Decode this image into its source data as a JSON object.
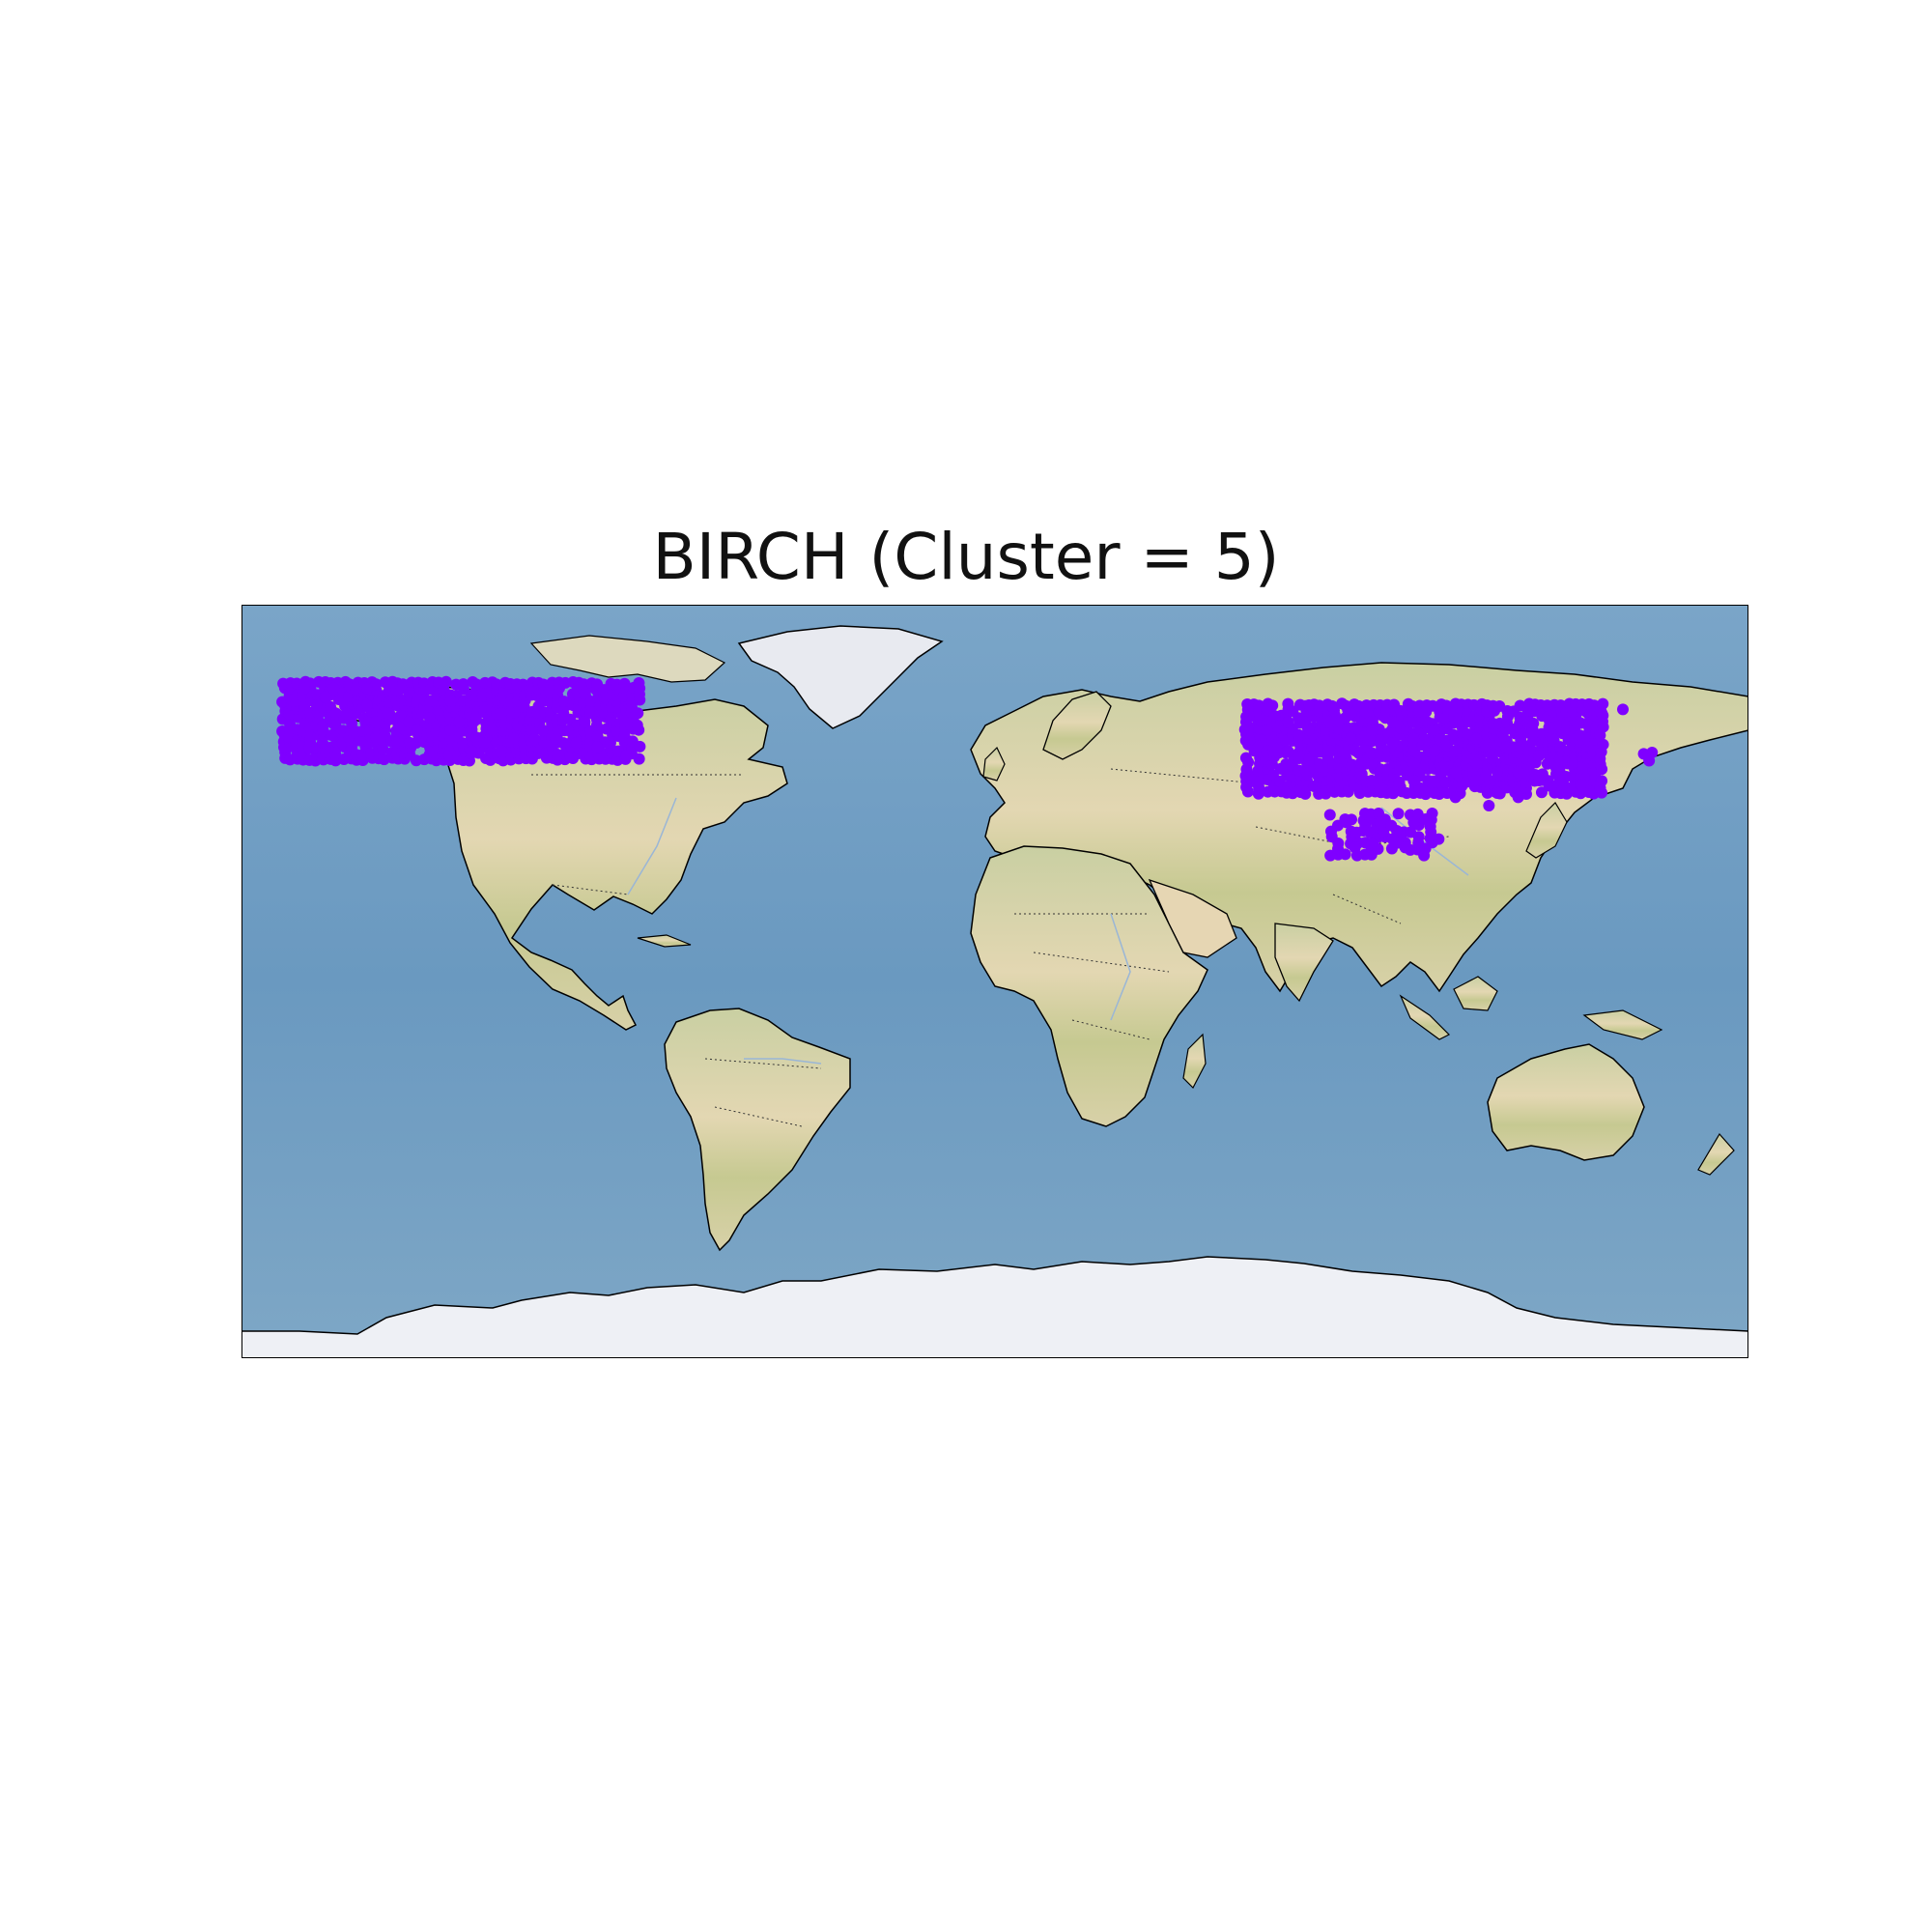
{
  "figure": {
    "title": "BIRCH (Cluster = 5)"
  },
  "map": {
    "projection": "plate-carree",
    "extent_lon": [
      -180,
      180
    ],
    "extent_lat": [
      -90,
      90
    ],
    "features": [
      "stock-img",
      "coastlines",
      "borders-dotted",
      "rivers"
    ],
    "colors": {
      "ocean": "#6f9dc4",
      "land": "#d8d4a6",
      "ice": "#eef0f5",
      "coastline": "#000000",
      "border": "#333333",
      "river": "#9ab6d6"
    }
  },
  "chart_data": {
    "type": "scatter",
    "cluster": 5,
    "point_color": "#7f00ff",
    "regions": [
      {
        "name": "Alaska / NW Canada",
        "lon_range": [
          -170,
          -85
        ],
        "lat_range": [
          53,
          72
        ]
      },
      {
        "name": "Siberia / Mongolia / NE China",
        "lon_range": [
          60,
          145
        ],
        "lat_range": [
          45,
          67
        ]
      },
      {
        "name": "Tibetan Plateau",
        "lon_range": [
          80,
          105
        ],
        "lat_range": [
          30,
          40
        ]
      },
      {
        "name": "Kamchatka",
        "lon_range": [
          155,
          158
        ],
        "lat_range": [
          53,
          55
        ]
      }
    ],
    "points": [
      [
        -160,
        68
      ],
      [
        -150,
        66
      ],
      [
        -145,
        64
      ],
      [
        -140,
        62
      ],
      [
        -135,
        63
      ],
      [
        -128,
        62
      ],
      [
        -120,
        60
      ],
      [
        -115,
        58
      ],
      [
        -110,
        58
      ],
      [
        -105,
        58
      ],
      [
        -100,
        57
      ],
      [
        -95,
        56
      ],
      [
        -90,
        55
      ],
      [
        -118,
        55
      ],
      [
        -125,
        55
      ],
      [
        -122,
        57
      ],
      [
        -130,
        60
      ],
      [
        -138,
        60
      ],
      [
        -148,
        62
      ],
      [
        -155,
        64
      ],
      [
        -162,
        66
      ],
      [
        -108,
        60
      ],
      [
        -98,
        62
      ],
      [
        -165,
        70
      ],
      [
        -158,
        70
      ],
      [
        -150,
        70
      ],
      [
        -140,
        69
      ],
      [
        -130,
        67
      ],
      [
        -118,
        64
      ],
      [
        -102,
        60
      ],
      [
        -88,
        54
      ],
      [
        60,
        62
      ],
      [
        65,
        60
      ],
      [
        70,
        62
      ],
      [
        75,
        60
      ],
      [
        80,
        62
      ],
      [
        85,
        58
      ],
      [
        90,
        60
      ],
      [
        95,
        57
      ],
      [
        100,
        58
      ],
      [
        105,
        55
      ],
      [
        110,
        55
      ],
      [
        115,
        52
      ],
      [
        120,
        50
      ],
      [
        125,
        50
      ],
      [
        130,
        48
      ],
      [
        135,
        48
      ],
      [
        140,
        47
      ],
      [
        70,
        55
      ],
      [
        75,
        53
      ],
      [
        80,
        55
      ],
      [
        90,
        52
      ],
      [
        100,
        52
      ],
      [
        110,
        50
      ],
      [
        115,
        48
      ],
      [
        120,
        45
      ],
      [
        125,
        44
      ],
      [
        65,
        65
      ],
      [
        75,
        66
      ],
      [
        85,
        64
      ],
      [
        95,
        62
      ],
      [
        105,
        60
      ],
      [
        115,
        58
      ],
      [
        122,
        56
      ],
      [
        130,
        54
      ],
      [
        138,
        52
      ],
      [
        90,
        48
      ],
      [
        100,
        48
      ],
      [
        105,
        45
      ],
      [
        110,
        44
      ],
      [
        95,
        45
      ],
      [
        118,
        42
      ],
      [
        84,
        38
      ],
      [
        88,
        36
      ],
      [
        92,
        38
      ],
      [
        96,
        36
      ],
      [
        100,
        38
      ],
      [
        104,
        37
      ],
      [
        90,
        33
      ],
      [
        86,
        32
      ],
      [
        95,
        34
      ],
      [
        82,
        33
      ],
      [
        106,
        34
      ],
      [
        98,
        32
      ],
      [
        156,
        54
      ],
      [
        145,
        64
      ],
      [
        150,
        65
      ]
    ]
  }
}
